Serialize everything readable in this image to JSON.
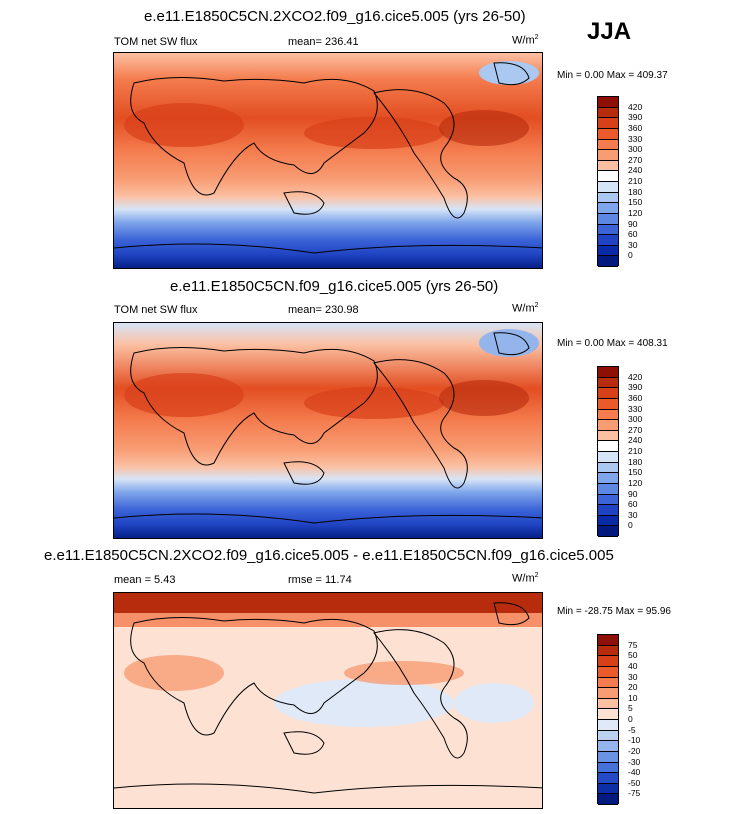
{
  "season": "JJA",
  "panels": [
    {
      "title": "e.e11.E1850C5CN.2XCO2.f09_g16.cice5.005 (yrs 26-50)",
      "left_label": "TOM net SW flux",
      "mid_label": "mean= 236.41",
      "units": "W/m",
      "units_sup": "2",
      "minmax": "Min =   0.00 Max = 409.37",
      "colorbar": {
        "labels": [
          "420",
          "390",
          "360",
          "330",
          "300",
          "270",
          "240",
          "210",
          "180",
          "150",
          "120",
          "90",
          "60",
          "30",
          "0"
        ],
        "colors": [
          "#8e1004",
          "#b82c0e",
          "#d8401a",
          "#eb5a2b",
          "#f47c4e",
          "#f89c73",
          "#fbc0a2",
          "#ffffff",
          "#d6e4f7",
          "#aac8f0",
          "#7fa6ea",
          "#5c87e3",
          "#3c64d8",
          "#1f43c2",
          "#0b2aa8",
          "#021a7e"
        ]
      }
    },
    {
      "title": "e.e11.E1850C5CN.f09_g16.cice5.005 (yrs 26-50)",
      "left_label": "TOM net SW flux",
      "mid_label": "mean= 230.98",
      "units": "W/m",
      "units_sup": "2",
      "minmax": "Min =   0.00 Max = 408.31",
      "colorbar": {
        "labels": [
          "420",
          "390",
          "360",
          "330",
          "300",
          "270",
          "240",
          "210",
          "180",
          "150",
          "120",
          "90",
          "60",
          "30",
          "0"
        ],
        "colors": [
          "#8e1004",
          "#b82c0e",
          "#d8401a",
          "#eb5a2b",
          "#f47c4e",
          "#f89c73",
          "#fbc0a2",
          "#ffffff",
          "#d6e4f7",
          "#aac8f0",
          "#7fa6ea",
          "#5c87e3",
          "#3c64d8",
          "#1f43c2",
          "#0b2aa8",
          "#021a7e"
        ]
      }
    },
    {
      "title": "e.e11.E1850C5CN.2XCO2.f09_g16.cice5.005 - e.e11.E1850C5CN.f09_g16.cice5.005",
      "left_label": "mean =   5.43",
      "mid_label": "rmse =  11.74",
      "units": "W/m",
      "units_sup": "2",
      "minmax": "Min = -28.75 Max =  95.96",
      "colorbar": {
        "labels": [
          "75",
          "50",
          "40",
          "30",
          "20",
          "10",
          "5",
          "0",
          "-5",
          "-10",
          "-20",
          "-30",
          "-40",
          "-50",
          "-75"
        ],
        "colors": [
          "#8e1004",
          "#b82c0e",
          "#d8401a",
          "#eb5a2b",
          "#f47c4e",
          "#f89c73",
          "#fbc0a2",
          "#fde2d3",
          "#dfe9f8",
          "#bcd2f2",
          "#94b5ec",
          "#6b93e4",
          "#4670da",
          "#244bc5",
          "#0e2ea8",
          "#021a7e"
        ]
      }
    }
  ]
}
